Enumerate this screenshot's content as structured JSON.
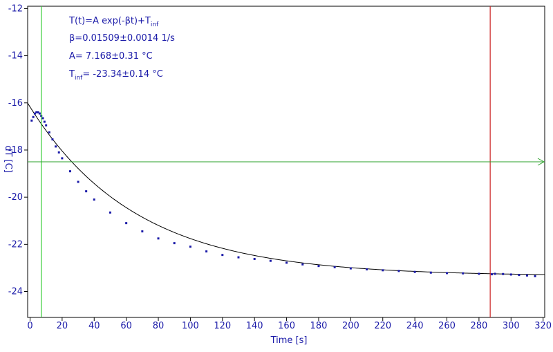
{
  "chart_data": {
    "type": "scatter",
    "title": "",
    "xlabel": "Time [s]",
    "ylabel": "dT [C]",
    "xlim": [
      -1.5,
      321
    ],
    "ylim": [
      -25.1,
      -11.9
    ],
    "x_ticks": [
      0,
      20,
      40,
      60,
      80,
      100,
      120,
      140,
      160,
      180,
      200,
      220,
      240,
      260,
      280,
      300,
      320
    ],
    "y_ticks": [
      -12,
      -14,
      -16,
      -18,
      -20,
      -22,
      -24
    ],
    "grid": false,
    "legend": "none",
    "fit_model": {
      "A": 7.168,
      "beta": 0.01509,
      "T_inf": -23.34,
      "x_start": -1.5,
      "x_end": 321
    },
    "series": [
      {
        "color": "#1a1aa8",
        "marker": "square",
        "x": [
          1,
          2,
          3,
          4,
          5,
          6,
          7,
          8,
          9,
          10,
          12,
          14,
          16,
          18,
          20,
          25,
          30,
          35,
          40,
          50,
          60,
          70,
          80,
          90,
          100,
          110,
          120,
          130,
          140,
          150,
          160,
          170,
          180,
          190,
          200,
          210,
          220,
          230,
          240,
          250,
          260,
          270,
          280,
          288,
          290,
          295,
          300,
          305,
          310,
          315
        ],
        "y": [
          -16.75,
          -16.6,
          -16.45,
          -16.4,
          -16.4,
          -16.45,
          -16.55,
          -16.65,
          -16.8,
          -16.95,
          -17.25,
          -17.55,
          -17.85,
          -18.1,
          -18.35,
          -18.9,
          -19.35,
          -19.75,
          -20.1,
          -20.65,
          -21.1,
          -21.45,
          -21.75,
          -21.95,
          -22.1,
          -22.3,
          -22.45,
          -22.55,
          -22.62,
          -22.7,
          -22.78,
          -22.85,
          -22.92,
          -22.97,
          -23.02,
          -23.06,
          -23.1,
          -23.13,
          -23.17,
          -23.2,
          -23.22,
          -23.23,
          -23.25,
          -23.27,
          -23.25,
          -23.26,
          -23.28,
          -23.3,
          -23.32,
          -23.35
        ]
      }
    ],
    "cursors": {
      "vertical_green_x": 7,
      "vertical_red_x": 287,
      "horizontal_green_y": -18.5
    },
    "annotations": {
      "line1_main": "T(t)=A exp(-βt)+T",
      "line1_sub": "inf",
      "line2": "β=0.01509±0.0014 1/s",
      "line3": "A= 7.168±0.31 °C",
      "line4_main": "T",
      "line4_sub": "inf",
      "line4_rest": "= -23.34±0.14 °C"
    },
    "colors": {
      "axis": "#000000",
      "text": "#1a1aa8",
      "data": "#1a1aa8",
      "fit": "#000000",
      "green_cursor": "#2aa02a",
      "green_vertical": "#33cc33",
      "red_cursor": "#cc2222"
    }
  }
}
